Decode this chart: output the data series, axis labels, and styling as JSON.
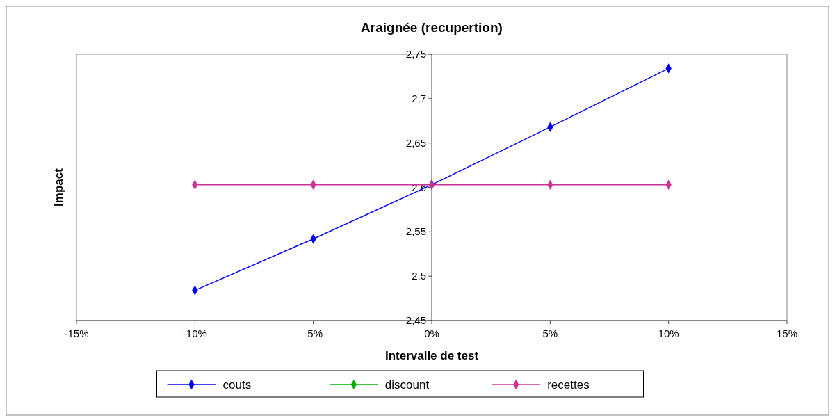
{
  "chart_data": {
    "type": "line",
    "title": "Araignée (recupertion)",
    "xlabel": "Intervalle de test",
    "ylabel": "Impact",
    "x": [
      -10,
      -5,
      0,
      5,
      10
    ],
    "series": [
      {
        "name": "couts",
        "color": "#0000ff",
        "values": [
          2.484,
          2.542,
          2.603,
          2.668,
          2.734
        ]
      },
      {
        "name": "discount",
        "color": "#00b000",
        "values": [
          null,
          null,
          null,
          null,
          null
        ]
      },
      {
        "name": "recettes",
        "color": "#cc3399",
        "values": [
          2.603,
          2.603,
          2.603,
          2.603,
          2.603
        ]
      }
    ],
    "xlim": [
      -15,
      15
    ],
    "xticks": [
      {
        "value": -15,
        "label": "-15%"
      },
      {
        "value": -10,
        "label": "-10%"
      },
      {
        "value": -5,
        "label": "-5%"
      },
      {
        "value": 0,
        "label": "0%"
      },
      {
        "value": 5,
        "label": "5%"
      },
      {
        "value": 10,
        "label": "10%"
      },
      {
        "value": 15,
        "label": "15%"
      }
    ],
    "ylim": [
      2.45,
      2.75
    ],
    "yticks": [
      {
        "value": 2.45,
        "label": "2,45"
      },
      {
        "value": 2.5,
        "label": "2,5"
      },
      {
        "value": 2.55,
        "label": "2,55"
      },
      {
        "value": 2.6,
        "label": "2,6"
      },
      {
        "value": 2.65,
        "label": "2,65"
      },
      {
        "value": 2.7,
        "label": "2,7"
      },
      {
        "value": 2.75,
        "label": "2,75"
      }
    ],
    "marker": "diamond",
    "line_style": "solid",
    "legend": "bottom",
    "grid": false
  }
}
